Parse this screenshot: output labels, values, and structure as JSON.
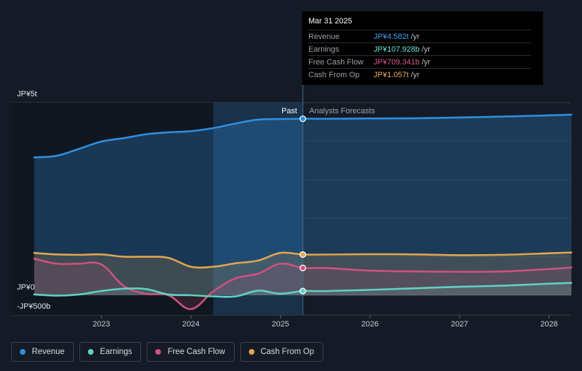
{
  "tooltip": {
    "date": "Mar 31 2025",
    "rows": [
      {
        "label": "Revenue",
        "value": "JP¥4.582t",
        "unit": "/yr",
        "color": "#3ea3f0"
      },
      {
        "label": "Earnings",
        "value": "JP¥107.928b",
        "unit": "/yr",
        "color": "#6ee7d3"
      },
      {
        "label": "Free Cash Flow",
        "value": "JP¥709.341b",
        "unit": "/yr",
        "color": "#e0578f"
      },
      {
        "label": "Cash From Op",
        "value": "JP¥1.057t",
        "unit": "/yr",
        "color": "#eab05a"
      }
    ]
  },
  "legend": [
    {
      "label": "Revenue",
      "color": "#2f8fe0"
    },
    {
      "label": "Earnings",
      "color": "#5fd3c2"
    },
    {
      "label": "Free Cash Flow",
      "color": "#d0517f"
    },
    {
      "label": "Cash From Op",
      "color": "#e3a64e"
    }
  ],
  "chart_data": {
    "type": "line",
    "title": "",
    "currency_unit": "JP¥ billions",
    "y_tick_labels": [
      "JP¥5t",
      "JP¥0",
      "-JP¥500b"
    ],
    "ylim": [
      -500,
      5000
    ],
    "xlim": [
      2022.2,
      2028.25
    ],
    "x_ticks": [
      2023,
      2024,
      2025,
      2026,
      2027,
      2028
    ],
    "x_tick_labels": [
      "2023",
      "2024",
      "2025",
      "2026",
      "2027",
      "2028"
    ],
    "past_label": "Past",
    "forecast_label": "Analysts Forecasts",
    "past_end": 2025.25,
    "highlight_start": 2024.25,
    "series": [
      {
        "name": "Revenue",
        "color": "#2f8fe0",
        "x": [
          2022.25,
          2022.5,
          2022.75,
          2023.0,
          2023.25,
          2023.5,
          2023.75,
          2024.0,
          2024.25,
          2024.5,
          2024.75,
          2025.0,
          2025.25,
          2025.5,
          2026.0,
          2026.5,
          2027.0,
          2027.5,
          2028.0,
          2028.25
        ],
        "values": [
          3580,
          3620,
          3800,
          3990,
          4080,
          4180,
          4230,
          4260,
          4340,
          4460,
          4560,
          4575,
          4582,
          4582,
          4590,
          4595,
          4615,
          4640,
          4670,
          4690
        ]
      },
      {
        "name": "Cash From Op",
        "color": "#e3a64e",
        "x": [
          2022.25,
          2022.5,
          2022.75,
          2023.0,
          2023.25,
          2023.5,
          2023.75,
          2024.0,
          2024.25,
          2024.5,
          2024.75,
          2025.0,
          2025.25,
          2025.5,
          2026.0,
          2026.5,
          2027.0,
          2027.5,
          2028.0,
          2028.25
        ],
        "values": [
          1100,
          1060,
          1050,
          1060,
          1000,
          1000,
          970,
          740,
          740,
          830,
          900,
          1100,
          1057,
          1057,
          1065,
          1060,
          1040,
          1050,
          1090,
          1110
        ]
      },
      {
        "name": "Free Cash Flow",
        "color": "#d0517f",
        "x": [
          2022.25,
          2022.5,
          2022.75,
          2023.0,
          2023.25,
          2023.5,
          2023.75,
          2024.0,
          2024.25,
          2024.5,
          2024.75,
          2025.0,
          2025.25,
          2025.5,
          2026.0,
          2026.5,
          2027.0,
          2027.5,
          2028.0,
          2028.25
        ],
        "values": [
          950,
          820,
          820,
          800,
          240,
          40,
          0,
          -360,
          100,
          440,
          560,
          820,
          709,
          709,
          640,
          620,
          610,
          620,
          680,
          720
        ]
      },
      {
        "name": "Earnings",
        "color": "#5fd3c2",
        "x": [
          2022.25,
          2022.5,
          2022.75,
          2023.0,
          2023.25,
          2023.5,
          2023.75,
          2024.0,
          2024.25,
          2024.5,
          2024.75,
          2025.0,
          2025.25,
          2025.5,
          2026.0,
          2026.5,
          2027.0,
          2027.5,
          2028.0,
          2028.25
        ],
        "values": [
          20,
          -10,
          20,
          110,
          170,
          160,
          20,
          0,
          -30,
          -30,
          120,
          40,
          108,
          108,
          140,
          180,
          220,
          250,
          300,
          320
        ]
      }
    ]
  }
}
